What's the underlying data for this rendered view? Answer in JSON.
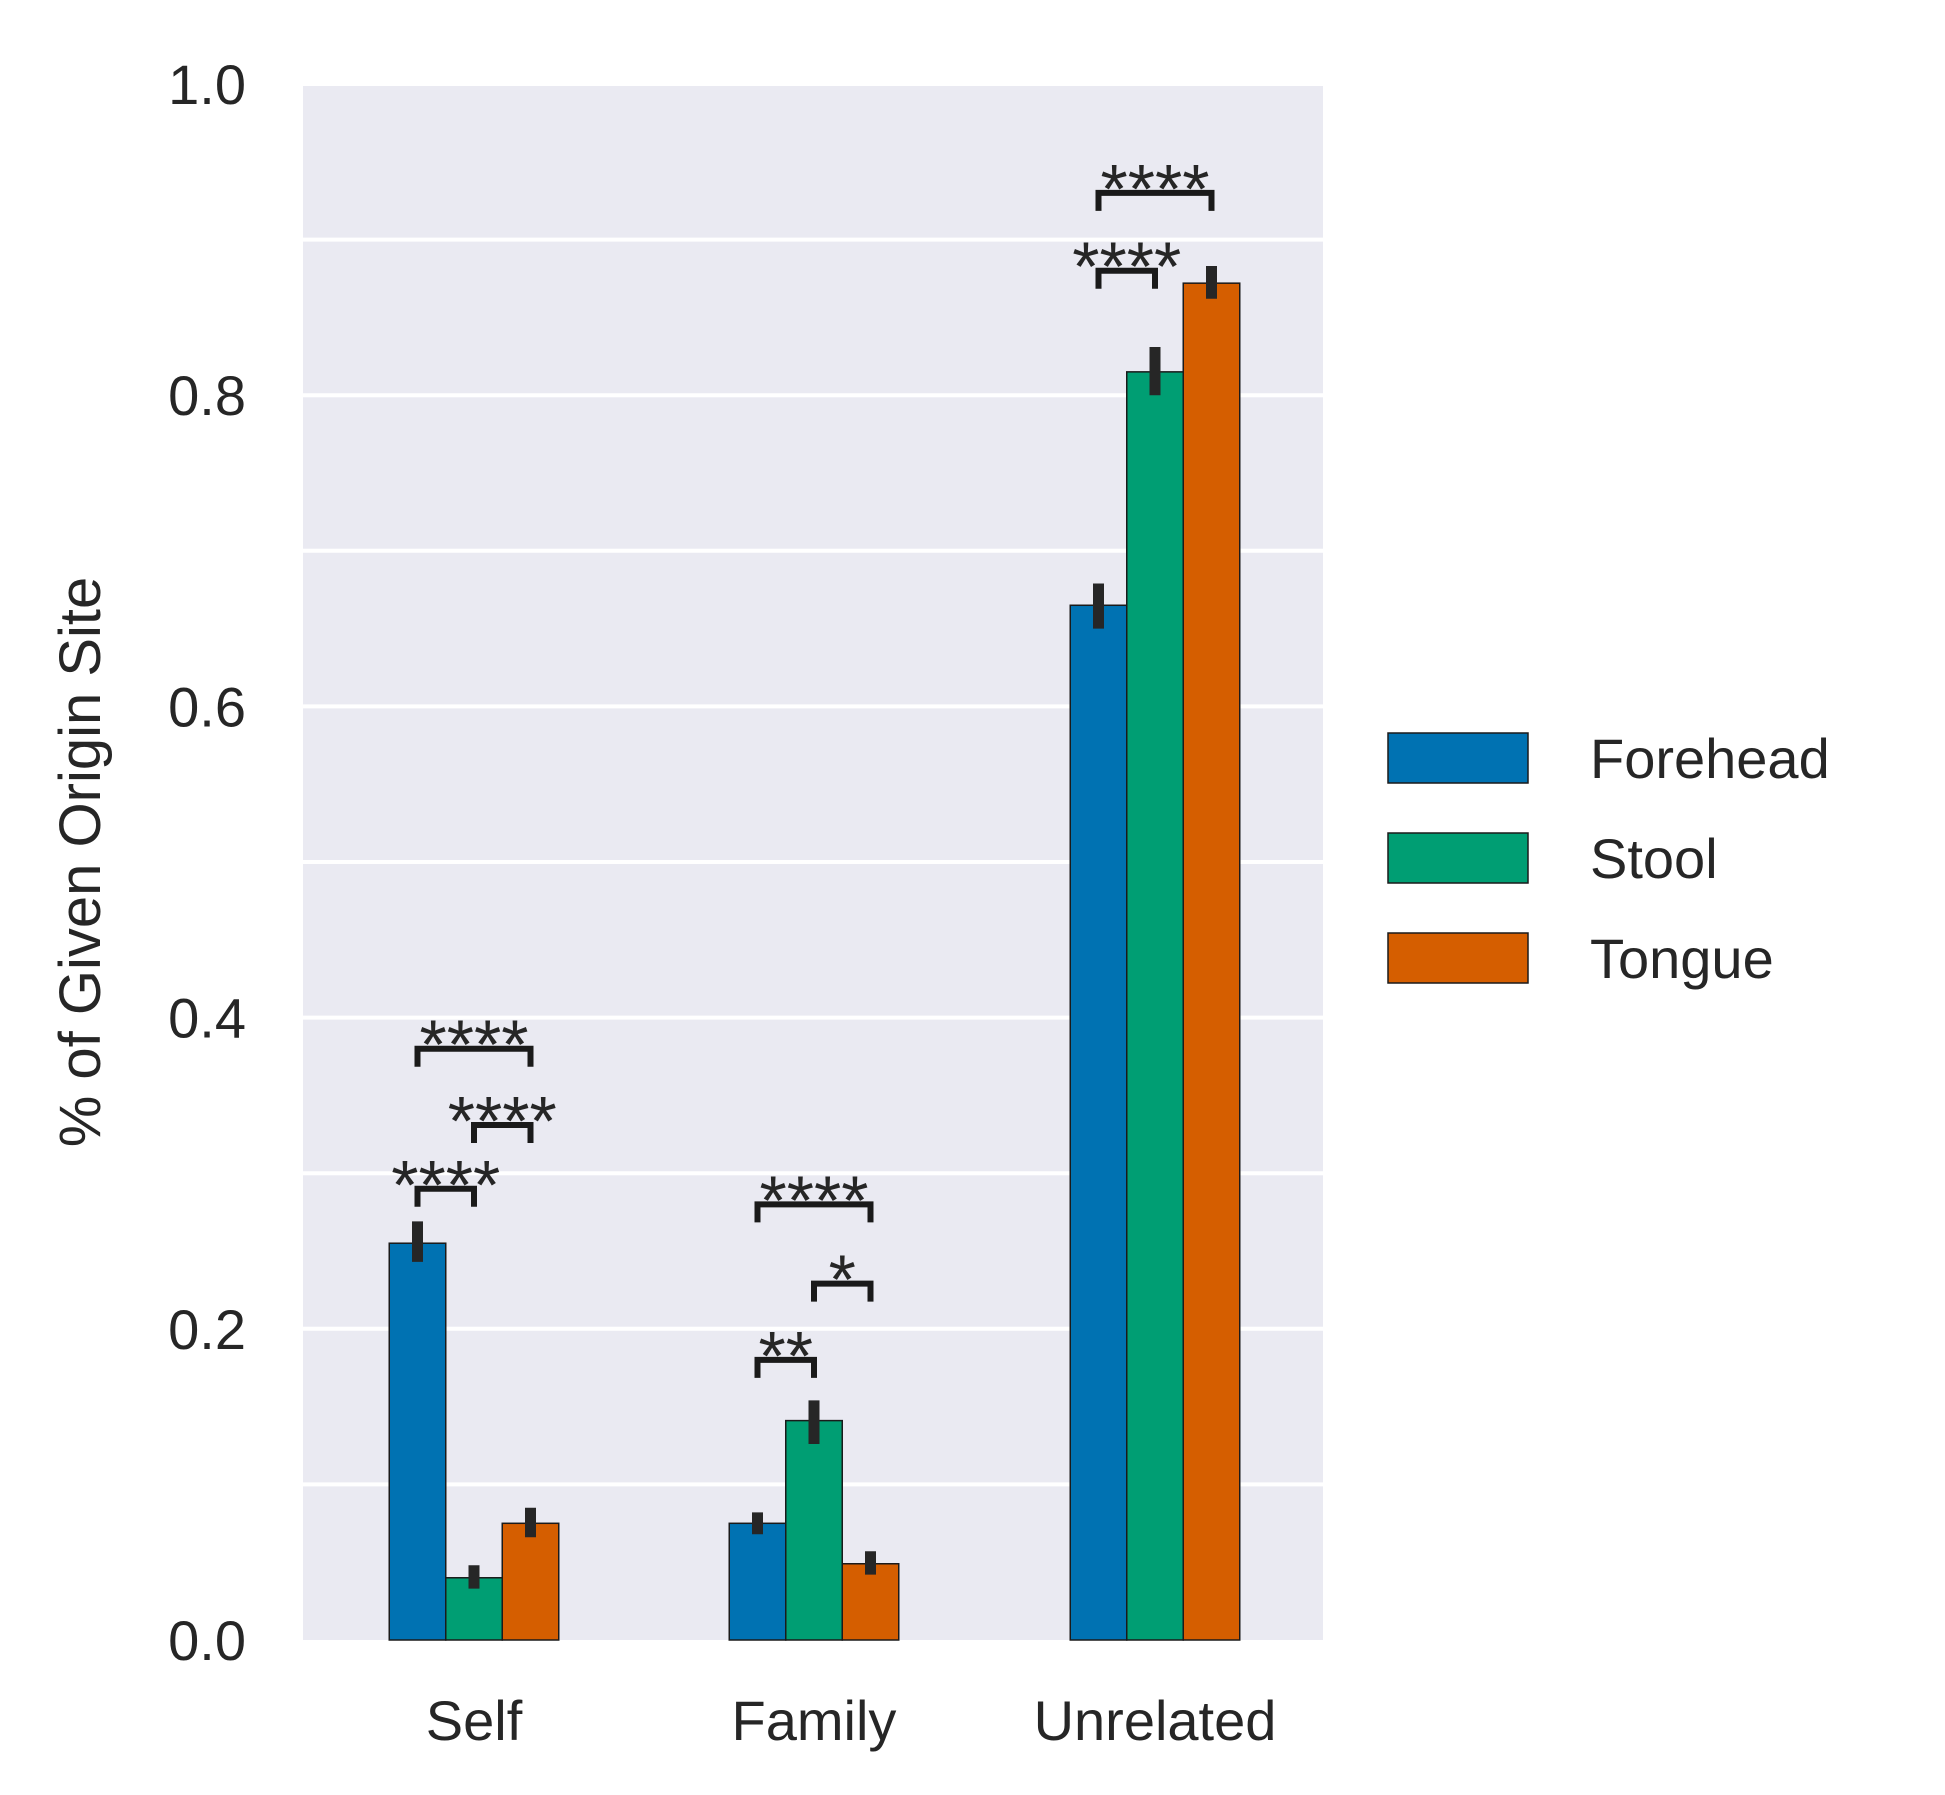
{
  "chart_data": {
    "type": "bar",
    "title": "",
    "xlabel": "",
    "ylabel": "% of Given Origin Site",
    "categories": [
      "Self",
      "Family",
      "Unrelated"
    ],
    "ylim": [
      0.0,
      1.0
    ],
    "yticks": [
      "0.0",
      "0.2",
      "0.4",
      "0.6",
      "0.8",
      "1.0"
    ],
    "grid": true,
    "legend_position": "right",
    "series": [
      {
        "name": "Forehead",
        "color": "#0072b2",
        "values": [
          0.255,
          0.075,
          0.665
        ],
        "err_low": [
          0.243,
          0.068,
          0.65
        ],
        "err_high": [
          0.269,
          0.082,
          0.679
        ]
      },
      {
        "name": "Stool",
        "color": "#009e73",
        "values": [
          0.04,
          0.141,
          0.815
        ],
        "err_low": [
          0.033,
          0.126,
          0.8
        ],
        "err_high": [
          0.048,
          0.154,
          0.831
        ]
      },
      {
        "name": "Tongue",
        "color": "#d55e00",
        "values": [
          0.075,
          0.049,
          0.872
        ],
        "err_low": [
          0.066,
          0.042,
          0.862
        ],
        "err_high": [
          0.085,
          0.057,
          0.883
        ]
      }
    ],
    "significance": [
      {
        "category": 0,
        "from_series": 0,
        "to_series": 1,
        "level": 0.29,
        "label": "****"
      },
      {
        "category": 0,
        "from_series": 1,
        "to_series": 2,
        "level": 0.331,
        "label": "****"
      },
      {
        "category": 0,
        "from_series": 0,
        "to_series": 2,
        "level": 0.38,
        "label": "****"
      },
      {
        "category": 1,
        "from_series": 0,
        "to_series": 1,
        "level": 0.18,
        "label": "**"
      },
      {
        "category": 1,
        "from_series": 1,
        "to_series": 2,
        "level": 0.229,
        "label": "*"
      },
      {
        "category": 1,
        "from_series": 0,
        "to_series": 2,
        "level": 0.28,
        "label": "****"
      },
      {
        "category": 2,
        "from_series": 0,
        "to_series": 1,
        "level": 0.88,
        "label": "****"
      },
      {
        "category": 2,
        "from_series": 0,
        "to_series": 2,
        "level": 0.93,
        "label": "****"
      }
    ]
  }
}
